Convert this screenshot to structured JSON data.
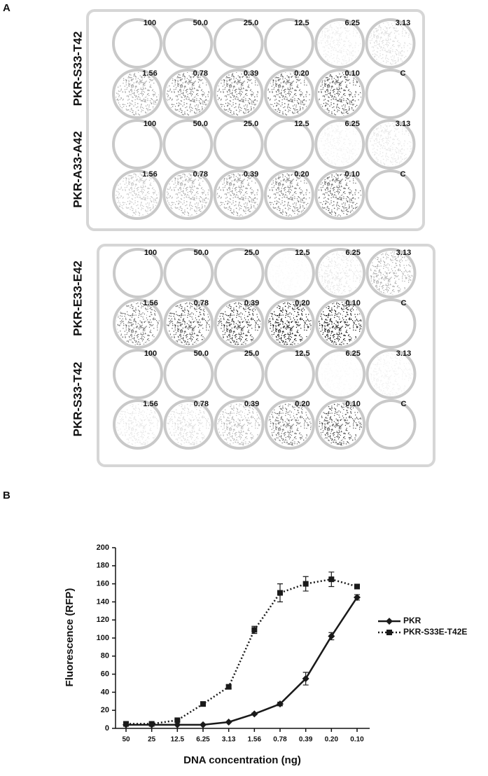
{
  "panel_labels": [
    "A",
    "B"
  ],
  "plates": [
    {
      "rows": [
        {
          "name": "PKR-S33-T42",
          "wells": [
            "100",
            "50.0",
            "25.0",
            "12.5",
            "6.25",
            "3.13",
            "1.56",
            "0.78",
            "0.39",
            "0.20",
            "0.10",
            "C"
          ]
        },
        {
          "name": "PKR-A33-A42",
          "wells": [
            "100",
            "50.0",
            "25.0",
            "12.5",
            "6.25",
            "3.13",
            "1.56",
            "0.78",
            "0.39",
            "0.20",
            "0.10",
            "C"
          ]
        }
      ]
    },
    {
      "rows": [
        {
          "name": "PKR-E33-E42",
          "wells": [
            "100",
            "50.0",
            "25.0",
            "12.5",
            "6.25",
            "3.13",
            "1.56",
            "0.78",
            "0.39",
            "0.20",
            "0.10",
            "C"
          ]
        },
        {
          "name": "PKR-S33-T42",
          "wells": [
            "100",
            "50.0",
            "25.0",
            "12.5",
            "6.25",
            "3.13",
            "1.56",
            "0.78",
            "0.39",
            "0.20",
            "0.10",
            "C"
          ]
        }
      ]
    }
  ],
  "chart_data": {
    "type": "line",
    "xlabel": "DNA concentration (ng)",
    "ylabel": "Fluorescence (RFP)",
    "categories": [
      "50",
      "25",
      "12.5",
      "6.25",
      "3.13",
      "1.56",
      "0.78",
      "0.39",
      "0.20",
      "0.10"
    ],
    "ylim": [
      0,
      200
    ],
    "yticks": [
      0,
      20,
      40,
      60,
      80,
      100,
      120,
      140,
      160,
      180,
      200
    ],
    "series": [
      {
        "name": "PKR",
        "color": "#1a1a1a",
        "line_style": "solid",
        "marker": "diamond",
        "values": [
          4,
          4,
          4,
          4,
          7,
          16,
          27,
          55,
          102,
          145
        ],
        "errors": [
          0,
          0,
          0,
          0,
          0,
          1,
          2,
          7,
          4,
          3
        ]
      },
      {
        "name": "PKR-S33E-T42E",
        "color": "#1a1a1a",
        "line_style": "dotted",
        "marker": "square",
        "values": [
          5,
          5,
          9,
          27,
          46,
          109,
          150,
          160,
          165,
          157
        ],
        "errors": [
          1,
          1,
          1,
          1,
          2,
          4,
          10,
          8,
          8,
          2
        ]
      }
    ]
  }
}
